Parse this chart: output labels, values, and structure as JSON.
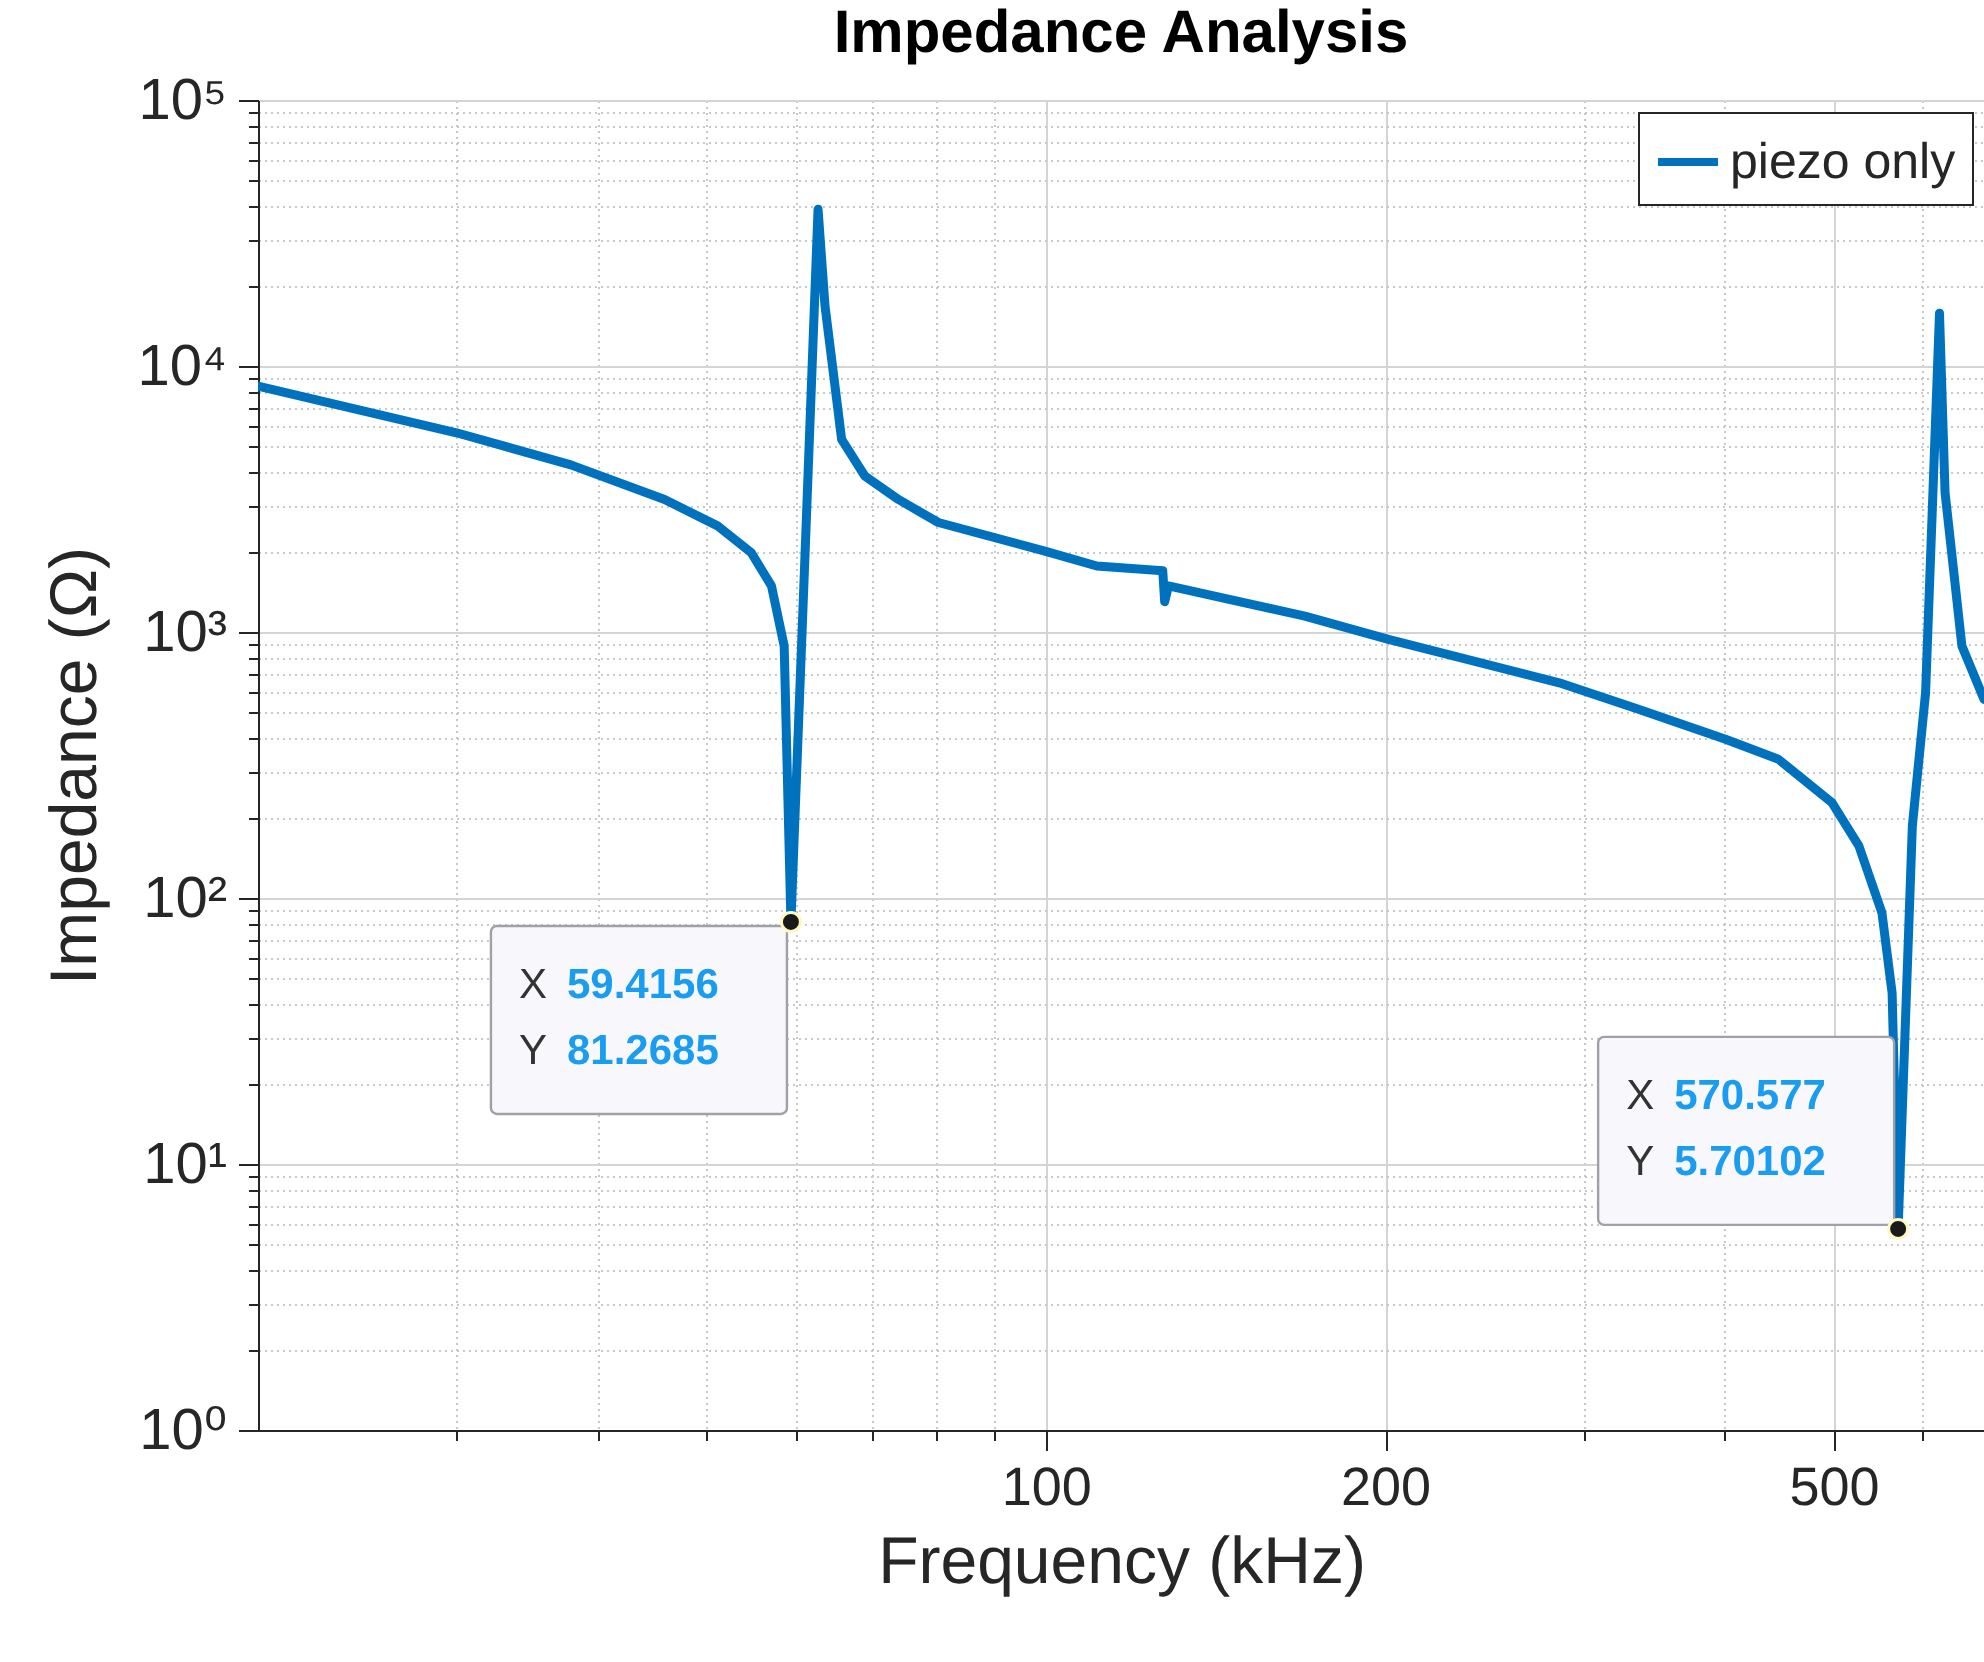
{
  "chart_data": {
    "type": "line",
    "title": "Impedance Analysis",
    "xlabel": "Frequency (kHz)",
    "ylabel": "Impedance (Ω)",
    "log": "xy",
    "grid": true,
    "legend": "top right",
    "xlim": [
      20,
      680
    ],
    "ylim": [
      1,
      100000
    ],
    "xticks": [
      {
        "value": 30,
        "label": null
      },
      {
        "value": 40,
        "label": null
      },
      {
        "value": 50,
        "label": null
      },
      {
        "value": 60,
        "label": null
      },
      {
        "value": 70,
        "label": null
      },
      {
        "value": 80,
        "label": null
      },
      {
        "value": 90,
        "label": null
      },
      100,
      200,
      {
        "value": 300,
        "label": null
      },
      {
        "value": 400,
        "label": null
      },
      500,
      {
        "value": 600,
        "label": null
      }
    ],
    "yticks": [
      {
        "value": 1,
        "label": "10⁰"
      },
      {
        "value": 2,
        "label": null
      },
      {
        "value": 3,
        "label": null
      },
      {
        "value": 4,
        "label": null
      },
      {
        "value": 5,
        "label": null
      },
      {
        "value": 6,
        "label": null
      },
      {
        "value": 7,
        "label": null
      },
      {
        "value": 8,
        "label": null
      },
      {
        "value": 9,
        "label": null
      },
      {
        "value": 10,
        "label": "10¹"
      },
      {
        "value": 20,
        "label": null
      },
      {
        "value": 30,
        "label": null
      },
      {
        "value": 40,
        "label": null
      },
      {
        "value": 50,
        "label": null
      },
      {
        "value": 60,
        "label": null
      },
      {
        "value": 70,
        "label": null
      },
      {
        "value": 80,
        "label": null
      },
      {
        "value": 90,
        "label": null
      },
      {
        "value": 100,
        "label": "10²"
      },
      {
        "value": 200,
        "label": null
      },
      {
        "value": 300,
        "label": null
      },
      {
        "value": 400,
        "label": null
      },
      {
        "value": 500,
        "label": null
      },
      {
        "value": 600,
        "label": null
      },
      {
        "value": 700,
        "label": null
      },
      {
        "value": 800,
        "label": null
      },
      {
        "value": 900,
        "label": null
      },
      {
        "value": 1000,
        "label": "10³"
      },
      {
        "value": 2000,
        "label": null
      },
      {
        "value": 3000,
        "label": null
      },
      {
        "value": 4000,
        "label": null
      },
      {
        "value": 5000,
        "label": null
      },
      {
        "value": 6000,
        "label": null
      },
      {
        "value": 7000,
        "label": null
      },
      {
        "value": 8000,
        "label": null
      },
      {
        "value": 9000,
        "label": null
      },
      {
        "value": 10000,
        "label": "10⁴"
      },
      {
        "value": 20000,
        "label": null
      },
      {
        "value": 30000,
        "label": null
      },
      {
        "value": 40000,
        "label": null
      },
      {
        "value": 50000,
        "label": null
      },
      {
        "value": 60000,
        "label": null
      },
      {
        "value": 70000,
        "label": null
      },
      {
        "value": 80000,
        "label": null
      },
      {
        "value": 90000,
        "label": null
      },
      {
        "value": 100000,
        "label": "10⁵"
      }
    ],
    "series": [
      {
        "name": "piezo only",
        "color": "#0072bd",
        "x": [
          20,
          30,
          37.9,
          45.9,
          51.2,
          54.8,
          57.1,
          58.6,
          59.4156,
          61.1,
          62.8,
          63.7,
          65.9,
          69.1,
          74,
          80.3,
          100,
          111,
          127,
          127.5,
          128.5,
          169.8,
          201.4,
          285.5,
          335.7,
          401,
          446.9,
          498.6,
          526.6,
          552,
          563.6,
          570.577,
          587.4,
          603.5,
          620.9,
          628,
          650,
          680
        ],
        "values": [
          8400,
          5610,
          4250,
          3150,
          2500,
          1985,
          1490,
          886,
          81.2685,
          1780,
          38800,
          16800,
          5300,
          3860,
          3150,
          2580,
          2010,
          1770,
          1700,
          1300,
          1490,
          1148,
          938,
          644,
          512,
          395,
          332,
          228,
          157,
          88,
          44,
          5.70102,
          187,
          591,
          15800,
          3340,
          886,
          558
        ]
      }
    ],
    "annotations": [
      {
        "text": "X 59.4156\nY 81.2685",
        "x": 59.4156,
        "y": 81.2685
      },
      {
        "text": "X 570.577\nY 5.70102",
        "x": 570.577,
        "y": 5.70102
      }
    ]
  }
}
